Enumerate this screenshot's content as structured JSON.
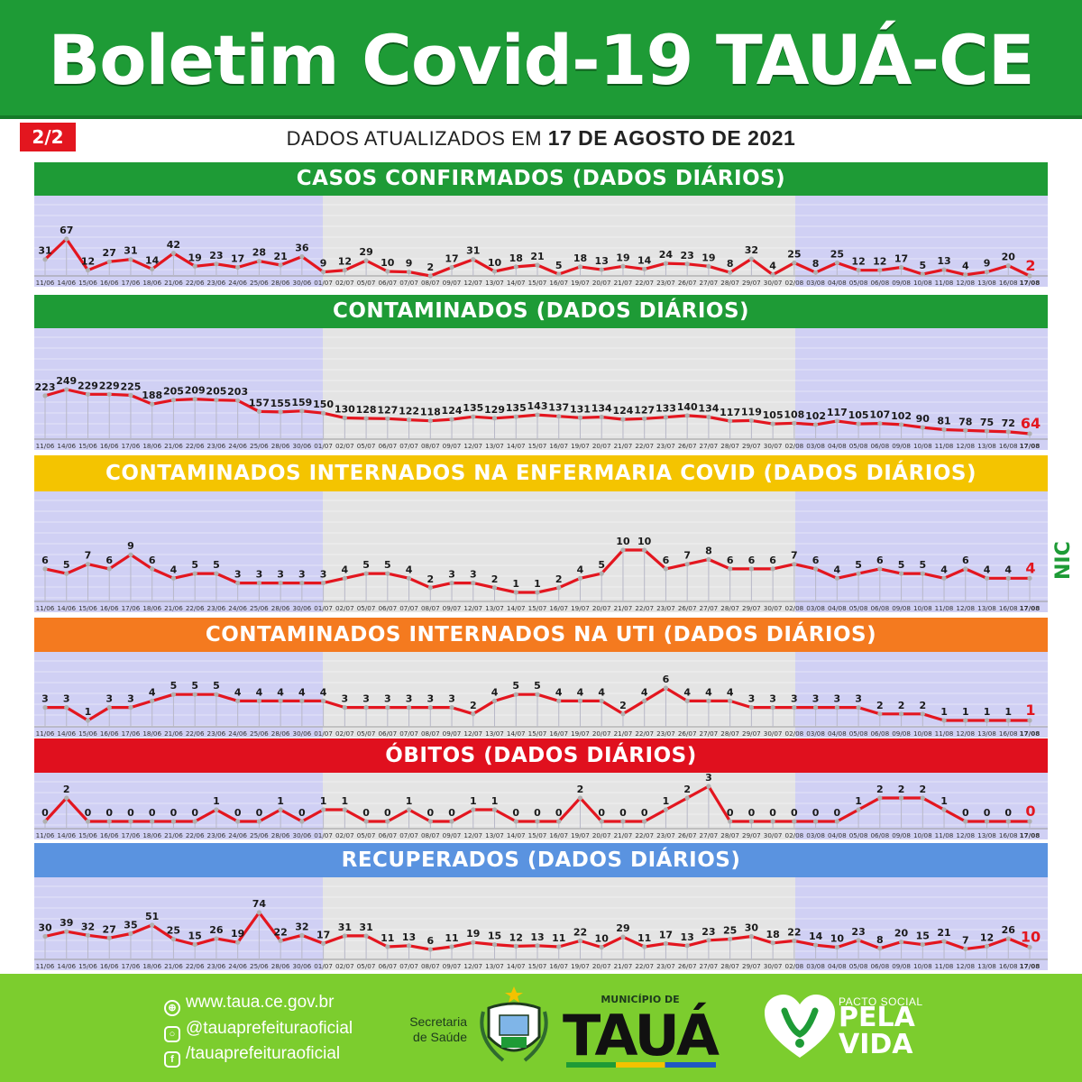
{
  "header": {
    "title": "Boletim Covid-19 TAUÁ-CE",
    "page": "2/2"
  },
  "updated": {
    "prefix": "DADOS ATUALIZADOS EM",
    "date": "17 DE AGOSTO DE 2021"
  },
  "colors": {
    "header_green": "#1e9b36",
    "confirmados": "#1e9b36",
    "contaminados": "#1e9b36",
    "enfermaria": "#f4c400",
    "uti": "#f47a1f",
    "obitos": "#e0101e",
    "recuperados": "#5a93e0",
    "line": "#e3161f",
    "plot_shade_side": "#d0d0f4",
    "plot_shade_mid": "#e4e4e4"
  },
  "chart_data": [
    {
      "type": "line",
      "title": "CASOS CONFIRMADOS  (DADOS DIÁRIOS)",
      "color_key": "confirmados",
      "x": [
        "11/06",
        "14/06",
        "15/06",
        "16/06",
        "17/06",
        "18/06",
        "21/06",
        "22/06",
        "23/06",
        "24/06",
        "25/06",
        "28/06",
        "30/06",
        "01/07",
        "02/07",
        "05/07",
        "06/07",
        "07/07",
        "08/07",
        "09/07",
        "12/07",
        "13/07",
        "14/07",
        "15/07",
        "16/07",
        "19/07",
        "20/07",
        "21/07",
        "22/07",
        "23/07",
        "26/07",
        "27/07",
        "28/07",
        "29/07",
        "30/07",
        "02/08",
        "03/08",
        "04/08",
        "05/08",
        "06/08",
        "09/08",
        "10/08",
        "11/08",
        "12/08",
        "13/08",
        "16/08",
        "17/08"
      ],
      "values": [
        31,
        67,
        12,
        27,
        31,
        14,
        42,
        19,
        23,
        17,
        28,
        21,
        36,
        9,
        12,
        29,
        10,
        9,
        2,
        17,
        31,
        10,
        18,
        21,
        5,
        18,
        13,
        19,
        14,
        24,
        23,
        19,
        8,
        32,
        4,
        25,
        8,
        25,
        12,
        12,
        17,
        5,
        13,
        4,
        9,
        20,
        2
      ]
    },
    {
      "type": "line",
      "title": "CONTAMINADOS  (DADOS DIÁRIOS)",
      "color_key": "contaminados",
      "x": [
        "11/06",
        "14/06",
        "15/06",
        "16/06",
        "17/06",
        "18/06",
        "21/06",
        "22/06",
        "23/06",
        "24/06",
        "25/06",
        "28/06",
        "30/06",
        "01/07",
        "02/07",
        "05/07",
        "06/07",
        "07/07",
        "08/07",
        "09/07",
        "12/07",
        "13/07",
        "14/07",
        "15/07",
        "16/07",
        "19/07",
        "20/07",
        "21/07",
        "22/07",
        "23/07",
        "26/07",
        "27/07",
        "28/07",
        "29/07",
        "30/07",
        "02/08",
        "03/08",
        "04/08",
        "05/08",
        "06/08",
        "09/08",
        "10/08",
        "11/08",
        "12/08",
        "13/08",
        "16/08",
        "17/08"
      ],
      "values": [
        223,
        249,
        229,
        229,
        225,
        188,
        205,
        209,
        205,
        203,
        157,
        155,
        159,
        150,
        130,
        128,
        127,
        122,
        118,
        124,
        135,
        129,
        135,
        143,
        137,
        131,
        134,
        124,
        127,
        133,
        140,
        134,
        117,
        119,
        105,
        108,
        102,
        117,
        105,
        107,
        102,
        90,
        81,
        78,
        75,
        72,
        64
      ]
    },
    {
      "type": "line",
      "title": "CONTAMINADOS INTERNADOS NA ENFERMARIA COVID  (DADOS DIÁRIOS)",
      "color_key": "enfermaria",
      "x": [
        "11/06",
        "14/06",
        "15/06",
        "16/06",
        "17/06",
        "18/06",
        "21/06",
        "22/06",
        "23/06",
        "24/06",
        "25/06",
        "28/06",
        "30/06",
        "01/07",
        "02/07",
        "05/07",
        "06/07",
        "07/07",
        "08/07",
        "09/07",
        "12/07",
        "13/07",
        "14/07",
        "15/07",
        "16/07",
        "19/07",
        "20/07",
        "21/07",
        "22/07",
        "23/07",
        "26/07",
        "27/07",
        "28/07",
        "29/07",
        "30/07",
        "02/08",
        "03/08",
        "04/08",
        "05/08",
        "06/08",
        "09/08",
        "10/08",
        "11/08",
        "12/08",
        "13/08",
        "16/08",
        "17/08"
      ],
      "values": [
        6,
        5,
        7,
        6,
        9,
        6,
        4,
        5,
        5,
        3,
        3,
        3,
        3,
        3,
        4,
        5,
        5,
        4,
        2,
        3,
        3,
        2,
        1,
        1,
        2,
        4,
        5,
        10,
        10,
        6,
        7,
        8,
        6,
        6,
        6,
        7,
        6,
        4,
        5,
        6,
        5,
        5,
        4,
        6,
        4,
        4,
        4
      ]
    },
    {
      "type": "line",
      "title": "CONTAMINADOS INTERNADOS NA UTI  (DADOS DIÁRIOS)",
      "color_key": "uti",
      "x": [
        "11/06",
        "14/06",
        "15/06",
        "16/06",
        "17/06",
        "18/06",
        "21/06",
        "22/06",
        "23/06",
        "24/06",
        "25/06",
        "28/06",
        "30/06",
        "01/07",
        "02/07",
        "05/07",
        "06/07",
        "07/07",
        "08/07",
        "09/07",
        "12/07",
        "13/07",
        "14/07",
        "15/07",
        "16/07",
        "19/07",
        "20/07",
        "21/07",
        "22/07",
        "23/07",
        "26/07",
        "27/07",
        "28/07",
        "29/07",
        "30/07",
        "02/08",
        "03/08",
        "04/08",
        "05/08",
        "06/08",
        "09/08",
        "10/08",
        "11/08",
        "12/08",
        "13/08",
        "16/08",
        "17/08"
      ],
      "values": [
        3,
        3,
        1,
        3,
        3,
        4,
        5,
        5,
        5,
        4,
        4,
        4,
        4,
        4,
        3,
        3,
        3,
        3,
        3,
        3,
        2,
        4,
        5,
        5,
        4,
        4,
        4,
        2,
        4,
        6,
        4,
        4,
        4,
        3,
        3,
        3,
        3,
        3,
        3,
        2,
        2,
        2,
        1,
        1,
        1,
        1,
        1
      ]
    },
    {
      "type": "line",
      "title": "ÓBITOS  (DADOS DIÁRIOS)",
      "color_key": "obitos",
      "x": [
        "11/06",
        "14/06",
        "15/06",
        "16/06",
        "17/06",
        "18/06",
        "21/06",
        "22/06",
        "23/06",
        "24/06",
        "25/06",
        "28/06",
        "30/06",
        "01/07",
        "02/07",
        "05/07",
        "06/07",
        "07/07",
        "08/07",
        "09/07",
        "12/07",
        "13/07",
        "14/07",
        "15/07",
        "16/07",
        "19/07",
        "20/07",
        "21/07",
        "22/07",
        "23/07",
        "26/07",
        "27/07",
        "28/07",
        "29/07",
        "30/07",
        "02/08",
        "03/08",
        "04/08",
        "05/08",
        "06/08",
        "09/08",
        "10/08",
        "11/08",
        "12/08",
        "13/08",
        "16/08",
        "17/08"
      ],
      "values": [
        0,
        2,
        0,
        0,
        0,
        0,
        0,
        0,
        1,
        0,
        0,
        1,
        0,
        1,
        1,
        0,
        0,
        1,
        0,
        0,
        1,
        1,
        0,
        0,
        0,
        2,
        0,
        0,
        0,
        1,
        2,
        3,
        0,
        0,
        0,
        0,
        0,
        0,
        1,
        2,
        2,
        2,
        1,
        0,
        0,
        0,
        0
      ]
    },
    {
      "type": "line",
      "title": "RECUPERADOS (DADOS DIÁRIOS)",
      "color_key": "recuperados",
      "x": [
        "11/06",
        "14/06",
        "15/06",
        "16/06",
        "17/06",
        "18/06",
        "21/06",
        "22/06",
        "23/06",
        "24/06",
        "25/06",
        "28/06",
        "30/06",
        "01/07",
        "02/07",
        "05/07",
        "06/07",
        "07/07",
        "08/07",
        "09/07",
        "12/07",
        "13/07",
        "14/07",
        "15/07",
        "16/07",
        "19/07",
        "20/07",
        "21/07",
        "22/07",
        "23/07",
        "26/07",
        "27/07",
        "28/07",
        "29/07",
        "30/07",
        "02/08",
        "03/08",
        "04/08",
        "05/08",
        "06/08",
        "09/08",
        "10/08",
        "11/08",
        "12/08",
        "13/08",
        "16/08",
        "17/08"
      ],
      "values": [
        30,
        39,
        32,
        27,
        35,
        51,
        25,
        15,
        26,
        19,
        74,
        22,
        32,
        17,
        31,
        31,
        11,
        13,
        6,
        11,
        19,
        15,
        12,
        13,
        11,
        22,
        10,
        29,
        11,
        17,
        13,
        23,
        25,
        30,
        18,
        22,
        14,
        10,
        23,
        8,
        20,
        15,
        21,
        7,
        12,
        26,
        10
      ]
    }
  ],
  "footer": {
    "website": "www.taua.ce.gov.br",
    "instagram": "@tauaprefeituraoficial",
    "facebook": "/tauaprefeituraoficial",
    "secretaria": "Secretaria",
    "saude": "de Saúde",
    "municipio_small": "MUNICÍPIO DE",
    "municipio": "TAUÁ",
    "pacto_small": "PACTO SOCIAL",
    "pacto_line1": "PELA",
    "pacto_line2": "VIDA",
    "nic": "NIC"
  }
}
